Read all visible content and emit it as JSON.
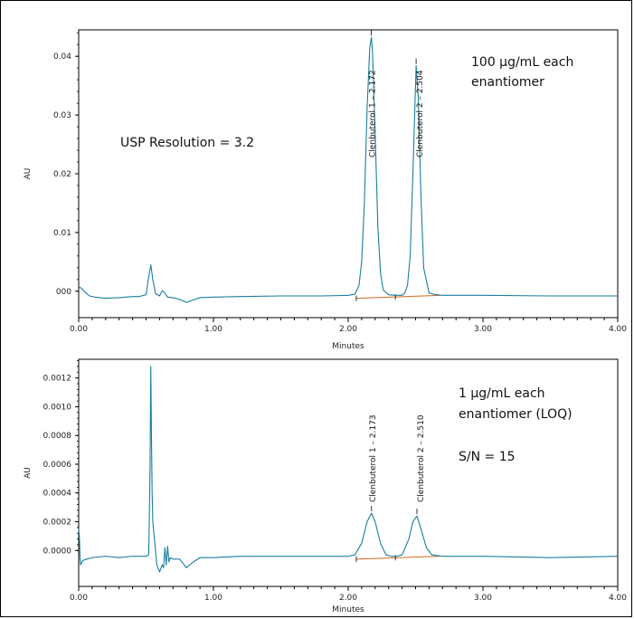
{
  "chart_data": [
    {
      "type": "line",
      "xlabel": "Minutes",
      "ylabel": "AU",
      "xlim": [
        0.0,
        4.0
      ],
      "ylim": [
        -0.0045,
        0.0445
      ],
      "xticks": [
        "0.00",
        "1.00",
        "2.00",
        "3.00",
        "4.00"
      ],
      "yticks": [
        {
          "value": 0.0,
          "label": "000"
        },
        {
          "value": 0.01,
          "label": "0.01"
        },
        {
          "value": 0.02,
          "label": "0.02"
        },
        {
          "value": 0.03,
          "label": "0.03"
        },
        {
          "value": 0.04,
          "label": "0.04"
        }
      ],
      "annotations": [
        {
          "text": "USP Resolution = 3.2"
        },
        {
          "text": "100 µg/mL each"
        },
        {
          "text": "enantiomer"
        }
      ],
      "peaks": [
        {
          "label": "Clenbuterol 1 – 2.172",
          "x": 2.172,
          "height": 0.0432
        },
        {
          "label": "Clenbuterol 2 – 2.504",
          "x": 2.504,
          "height": 0.0384
        }
      ],
      "series": [
        {
          "color": "#1a7d9e",
          "x": [
            0.0,
            0.02,
            0.05,
            0.08,
            0.12,
            0.2,
            0.3,
            0.4,
            0.45,
            0.5,
            0.52,
            0.535,
            0.55,
            0.57,
            0.6,
            0.62,
            0.64,
            0.66,
            0.7,
            0.75,
            0.8,
            0.85,
            0.9,
            1.0,
            1.2,
            1.5,
            1.8,
            2.0,
            2.05,
            2.08,
            2.1,
            2.12,
            2.14,
            2.16,
            2.172,
            2.18,
            2.2,
            2.22,
            2.24,
            2.26,
            2.3,
            2.35,
            2.4,
            2.42,
            2.44,
            2.46,
            2.48,
            2.504,
            2.52,
            2.54,
            2.56,
            2.6,
            2.65,
            2.7,
            3.0,
            3.5,
            4.0
          ],
          "y": [
            0.0008,
            0.0005,
            -0.0002,
            -0.0008,
            -0.001,
            -0.0012,
            -0.0011,
            -0.0009,
            -0.0009,
            -0.0006,
            0.0025,
            0.0045,
            0.002,
            -0.0004,
            -0.0008,
            0.0001,
            -0.0003,
            -0.001,
            -0.0011,
            -0.0014,
            -0.0019,
            -0.0015,
            -0.0011,
            -0.001,
            -0.0009,
            -0.0008,
            -0.0008,
            -0.0007,
            -0.0005,
            0.001,
            0.005,
            0.015,
            0.031,
            0.0415,
            0.0432,
            0.041,
            0.027,
            0.011,
            0.003,
            0.0002,
            -0.0006,
            -0.0007,
            -0.0007,
            -0.0003,
            0.001,
            0.006,
            0.02,
            0.0384,
            0.033,
            0.016,
            0.004,
            -0.0003,
            -0.0006,
            -0.0007,
            -0.0007,
            -0.0008,
            -0.0008
          ]
        }
      ],
      "baseline": {
        "color": "#d2691e",
        "x": [
          2.06,
          2.68
        ],
        "y": [
          -0.0012,
          -0.0007
        ]
      }
    },
    {
      "type": "line",
      "xlabel": "Minutes",
      "ylabel": "AU",
      "xlim": [
        0.0,
        4.0
      ],
      "ylim": [
        -0.00025,
        0.00133
      ],
      "xticks": [
        "0.00",
        "1.00",
        "2.00",
        "3.00",
        "4.00"
      ],
      "yticks": [
        {
          "value": 0.0,
          "label": "0.0000"
        },
        {
          "value": 0.0002,
          "label": "0.0002"
        },
        {
          "value": 0.0004,
          "label": "0.0004"
        },
        {
          "value": 0.0006,
          "label": "0.0006"
        },
        {
          "value": 0.0008,
          "label": "0.0008"
        },
        {
          "value": 0.001,
          "label": "0.0010"
        },
        {
          "value": 0.0012,
          "label": "0.0012"
        }
      ],
      "annotations": [
        {
          "text": "1 µg/mL each"
        },
        {
          "text": "enantiomer (LOQ)"
        },
        {
          "text": "S/N = 15"
        }
      ],
      "peaks": [
        {
          "label": "Clenbuterol 1 – 2.173",
          "x": 2.173,
          "height": 0.00026
        },
        {
          "label": "Clenbuterol 2 – 2.510",
          "x": 2.51,
          "height": 0.00024
        }
      ],
      "series": [
        {
          "color": "#1a7d9e",
          "x": [
            0.0,
            0.005,
            0.01,
            0.015,
            0.03,
            0.06,
            0.1,
            0.2,
            0.3,
            0.4,
            0.5,
            0.52,
            0.53,
            0.535,
            0.54,
            0.545,
            0.55,
            0.56,
            0.58,
            0.6,
            0.62,
            0.63,
            0.64,
            0.65,
            0.66,
            0.67,
            0.68,
            0.7,
            0.75,
            0.8,
            0.85,
            0.9,
            1.0,
            1.2,
            1.5,
            1.8,
            2.0,
            2.05,
            2.1,
            2.14,
            2.173,
            2.2,
            2.24,
            2.28,
            2.32,
            2.36,
            2.4,
            2.45,
            2.48,
            2.51,
            2.54,
            2.58,
            2.62,
            2.7,
            3.0,
            3.5,
            4.0
          ],
          "y": [
            0.00015,
            0.0001,
            -5e-05,
            -0.0001,
            -7e-05,
            -6e-05,
            -5e-05,
            -4e-05,
            -5e-05,
            -4e-05,
            -4e-05,
            -3e-05,
            0.0006,
            0.00128,
            0.0008,
            0.0004,
            0.0002,
            0.0001,
            -0.0001,
            -0.00015,
            -0.0001,
            -0.00012,
            2e-05,
            -0.0001,
            3e-05,
            -8e-05,
            -5e-05,
            -6e-05,
            -6e-05,
            -0.00012,
            -8e-05,
            -5e-05,
            -5e-05,
            -4e-05,
            -4e-05,
            -4e-05,
            -4e-05,
            -3e-05,
            5e-05,
            0.0002,
            0.00026,
            0.0002,
            5e-05,
            -3e-05,
            -4e-05,
            -4e-05,
            -3e-05,
            8e-05,
            0.0002,
            0.00024,
            0.00015,
            2e-05,
            -3e-05,
            -4e-05,
            -4e-05,
            -5e-05,
            -4e-05
          ]
        }
      ],
      "baseline": {
        "color": "#d2691e",
        "x": [
          2.06,
          2.68
        ],
        "y": [
          -6e-05,
          -4e-05
        ]
      }
    }
  ]
}
